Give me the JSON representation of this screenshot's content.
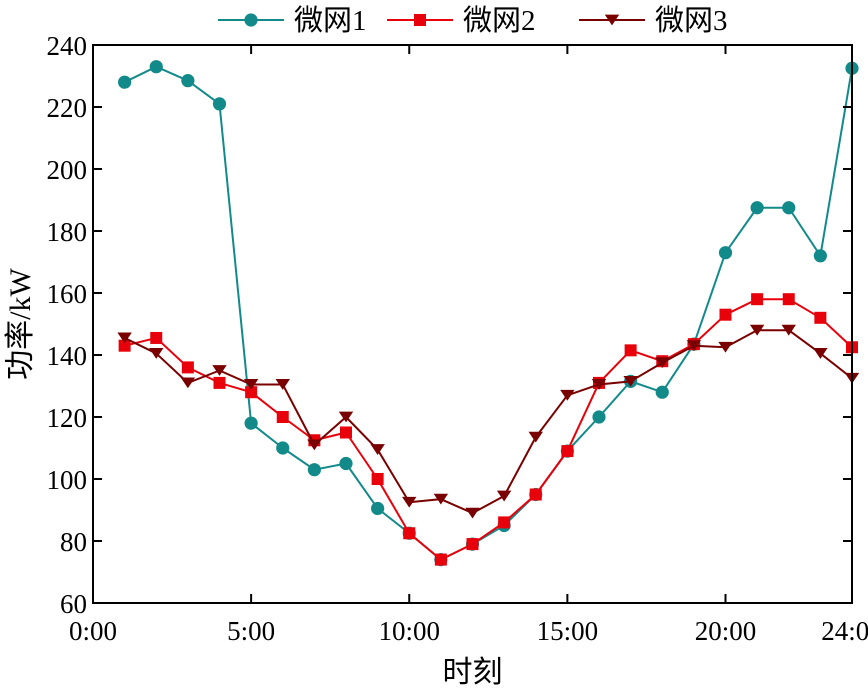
{
  "chart_data": {
    "type": "line",
    "title": "",
    "xlabel": "时刻",
    "ylabel": "功率/kW",
    "xlim": [
      0,
      24
    ],
    "ylim": [
      60,
      240
    ],
    "x_ticks": [
      0,
      5,
      10,
      15,
      20,
      24
    ],
    "x_tick_labels": [
      "0:00",
      "5:00",
      "10:00",
      "15:00",
      "20:00",
      "24:00"
    ],
    "y_ticks": [
      60,
      80,
      100,
      120,
      140,
      160,
      180,
      200,
      220,
      240
    ],
    "y_tick_labels": [
      "60",
      "80",
      "100",
      "120",
      "140",
      "160",
      "180",
      "200",
      "220",
      "240"
    ],
    "grid": false,
    "legend_position": "top",
    "x": [
      1,
      2,
      3,
      4,
      5,
      6,
      7,
      8,
      9,
      10,
      11,
      12,
      13,
      14,
      15,
      16,
      17,
      18,
      19,
      20,
      21,
      22,
      23,
      24
    ],
    "series": [
      {
        "name": "微网1",
        "color": "#138a8a",
        "marker": "circle",
        "values": [
          228,
          233,
          228.5,
          221,
          118,
          110,
          103,
          105,
          90.5,
          82.5,
          74,
          79,
          85,
          95,
          109,
          120,
          131.5,
          128,
          143.5,
          173,
          187.5,
          187.5,
          172,
          232.5
        ]
      },
      {
        "name": "微网2",
        "color": "#e8000b",
        "marker": "square",
        "values": [
          143,
          145.5,
          136,
          131,
          128,
          120,
          112.5,
          115,
          100,
          82.5,
          74,
          79,
          86,
          95,
          109,
          131,
          141.5,
          138,
          143.5,
          153,
          158,
          158,
          152,
          142.5
        ]
      },
      {
        "name": "微网3",
        "color": "#7a0000",
        "marker": "triangle-down",
        "values": [
          145.5,
          140.5,
          131,
          135,
          130.5,
          130.5,
          111,
          120,
          109.5,
          92.5,
          93.5,
          89,
          94.5,
          113.5,
          127,
          130.5,
          131.5,
          137.5,
          143,
          142.5,
          148,
          148,
          140.5,
          132.5
        ]
      }
    ]
  }
}
